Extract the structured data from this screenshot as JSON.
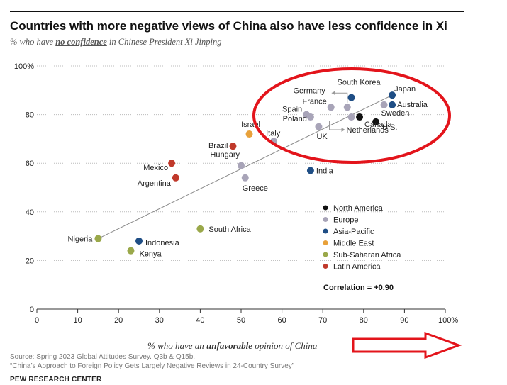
{
  "header": {
    "title": "Countries with more negative views of China also have less confidence in Xi",
    "subtitle_pre": "% who have ",
    "subtitle_em": "no confidence",
    "subtitle_post": " in Chinese President Xi Jinping"
  },
  "xaxis_label": {
    "pre": "% who have an ",
    "em": "unfavorable",
    "post": " opinion of China"
  },
  "footer": {
    "source_line1": "Source: Spring 2023 Global Attitudes Survey. Q3b & Q15b.",
    "source_line2": "“China’s Approach to Foreign Policy Gets Largely Negative Reviews in 24-Country Survey”",
    "brand": "PEW RESEARCH CENTER"
  },
  "chart_data": {
    "type": "scatter",
    "xlim": [
      0,
      100
    ],
    "ylim": [
      0,
      100
    ],
    "x_ticks": [
      "0",
      "10",
      "20",
      "30",
      "40",
      "50",
      "60",
      "70",
      "80",
      "90",
      "100%"
    ],
    "y_ticks": [
      "0",
      "20",
      "40",
      "60",
      "80",
      "100%"
    ],
    "grid": "horizontal dotted",
    "legend_position": "lower-right",
    "groups": [
      {
        "name": "North America",
        "color": "#111111"
      },
      {
        "name": "Europe",
        "color": "#a8a4b8"
      },
      {
        "name": "Asia-Pacific",
        "color": "#1f4e85"
      },
      {
        "name": "Middle East",
        "color": "#e8a13a"
      },
      {
        "name": "Sub-Saharan Africa",
        "color": "#9aa84a"
      },
      {
        "name": "Latin America",
        "color": "#c0392b"
      }
    ],
    "points": [
      {
        "label": "Nigeria",
        "x": 15,
        "y": 29,
        "group": "Sub-Saharan Africa"
      },
      {
        "label": "Kenya",
        "x": 23,
        "y": 24,
        "group": "Sub-Saharan Africa"
      },
      {
        "label": "Indonesia",
        "x": 25,
        "y": 28,
        "group": "Asia-Pacific"
      },
      {
        "label": "South Africa",
        "x": 40,
        "y": 33,
        "group": "Sub-Saharan Africa"
      },
      {
        "label": "Mexico",
        "x": 33,
        "y": 60,
        "group": "Latin America"
      },
      {
        "label": "Argentina",
        "x": 34,
        "y": 54,
        "group": "Latin America"
      },
      {
        "label": "Brazil",
        "x": 48,
        "y": 67,
        "group": "Latin America"
      },
      {
        "label": "Israel",
        "x": 52,
        "y": 72,
        "group": "Middle East"
      },
      {
        "label": "Hungary",
        "x": 50,
        "y": 59,
        "group": "Europe"
      },
      {
        "label": "Greece",
        "x": 51,
        "y": 54,
        "group": "Europe"
      },
      {
        "label": "Italy",
        "x": 58,
        "y": 69,
        "group": "Europe"
      },
      {
        "label": "India",
        "x": 67,
        "y": 57,
        "group": "Asia-Pacific"
      },
      {
        "label": "Spain",
        "x": 66,
        "y": 80,
        "group": "Europe"
      },
      {
        "label": "Poland",
        "x": 67,
        "y": 79,
        "group": "Europe"
      },
      {
        "label": "UK",
        "x": 69,
        "y": 75,
        "group": "Europe"
      },
      {
        "label": "France",
        "x": 72,
        "y": 83,
        "group": "Europe"
      },
      {
        "label": "Germany",
        "x": 76,
        "y": 83,
        "group": "Europe"
      },
      {
        "label": "Netherlands",
        "x": 77,
        "y": 79,
        "group": "Europe"
      },
      {
        "label": "South Korea",
        "x": 77,
        "y": 87,
        "group": "Asia-Pacific"
      },
      {
        "label": "Canada",
        "x": 79,
        "y": 79,
        "group": "North America"
      },
      {
        "label": "U.S.",
        "x": 83,
        "y": 77,
        "group": "North America"
      },
      {
        "label": "Sweden",
        "x": 85,
        "y": 84,
        "group": "Europe"
      },
      {
        "label": "Australia",
        "x": 87,
        "y": 84,
        "group": "Asia-Pacific"
      },
      {
        "label": "Japan",
        "x": 87,
        "y": 88,
        "group": "Asia-Pacific"
      }
    ],
    "trendline": {
      "x": [
        15,
        87
      ],
      "y": [
        29,
        88
      ]
    },
    "annotation": "Correlation = +0.90"
  }
}
